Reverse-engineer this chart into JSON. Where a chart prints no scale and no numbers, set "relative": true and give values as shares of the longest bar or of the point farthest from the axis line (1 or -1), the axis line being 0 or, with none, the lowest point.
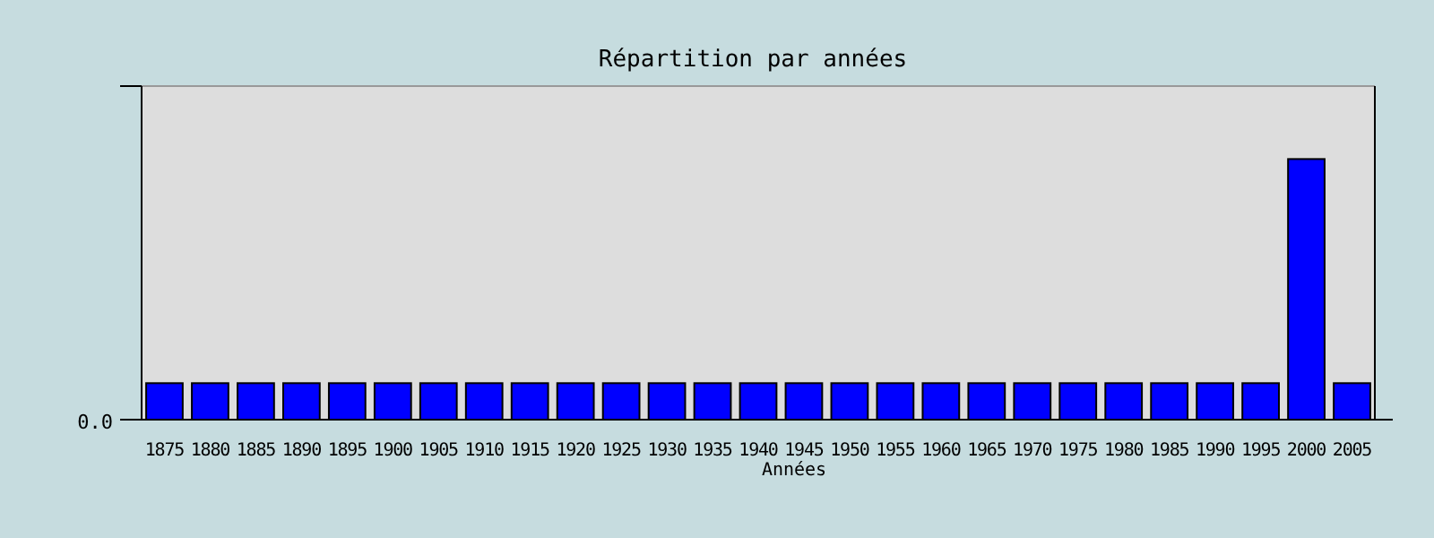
{
  "chart_data": {
    "type": "bar",
    "title": "Répartition par années",
    "xlabel": "Années",
    "categories": [
      "1875",
      "1880",
      "1885",
      "1890",
      "1895",
      "1900",
      "1905",
      "1910",
      "1915",
      "1920",
      "1925",
      "1930",
      "1935",
      "1940",
      "1945",
      "1950",
      "1955",
      "1960",
      "1965",
      "1970",
      "1975",
      "1980",
      "1985",
      "1990",
      "1995",
      "2000",
      "2005"
    ],
    "values": [
      0.14,
      0.14,
      0.14,
      0.14,
      0.14,
      0.14,
      0.14,
      0.14,
      0.14,
      0.14,
      0.14,
      0.14,
      0.14,
      0.14,
      0.14,
      0.14,
      0.14,
      0.14,
      0.14,
      0.14,
      0.14,
      0.14,
      0.14,
      0.14,
      0.14,
      1,
      0.14
    ],
    "color": "#0000ff",
    "relative": true,
    "annotations": [
      "0.0"
    ]
  }
}
